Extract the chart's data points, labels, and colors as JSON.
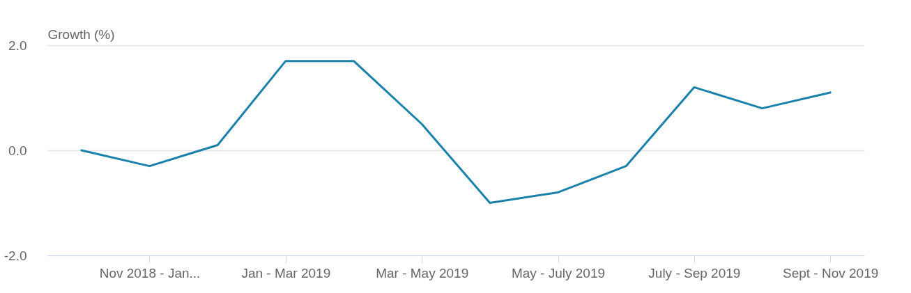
{
  "chart_data": {
    "type": "line",
    "ylabel": "Growth (%)",
    "categories": [
      null,
      "Nov 2018 - Jan...",
      null,
      "Jan - Mar 2019",
      null,
      "Mar - May 2019",
      null,
      "May - July 2019",
      null,
      "July - Sep 2019",
      null,
      "Sept - Nov 2019"
    ],
    "series": [
      {
        "color": "#1a82aa",
        "values": [
          0.0,
          -0.3,
          0.1,
          1.7,
          1.7,
          0.5,
          -1.0,
          -0.8,
          -0.3,
          1.2,
          0.8,
          1.1
        ]
      }
    ],
    "ylim": [
      -2,
      2
    ],
    "yticks": [
      {
        "value": -2,
        "label": "-2.0"
      },
      {
        "value": 0,
        "label": "0.0"
      },
      {
        "value": 2,
        "label": "2.0"
      }
    ],
    "grid": "y"
  }
}
